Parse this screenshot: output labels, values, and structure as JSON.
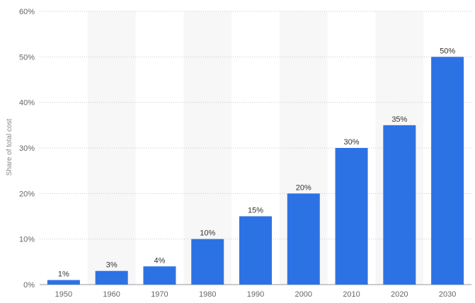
{
  "chart_data": {
    "type": "bar",
    "categories": [
      "1950",
      "1960",
      "1970",
      "1980",
      "1990",
      "2000",
      "2010",
      "2020",
      "2030"
    ],
    "values": [
      1,
      3,
      4,
      10,
      15,
      20,
      30,
      35,
      50
    ],
    "data_labels": [
      "1%",
      "3%",
      "4%",
      "10%",
      "15%",
      "20%",
      "30%",
      "35%",
      "50%"
    ],
    "ylabel": "Share of total cost",
    "ylim": [
      0,
      60
    ],
    "yticks": [
      0,
      10,
      20,
      30,
      40,
      50,
      60
    ],
    "ytick_labels": [
      "0%",
      "10%",
      "20%",
      "30%",
      "40%",
      "50%",
      "60%"
    ],
    "grid": true,
    "colors": {
      "bar": "#2d72e5",
      "grid": "#c8c8c8",
      "band": "#f7f7f7"
    }
  }
}
